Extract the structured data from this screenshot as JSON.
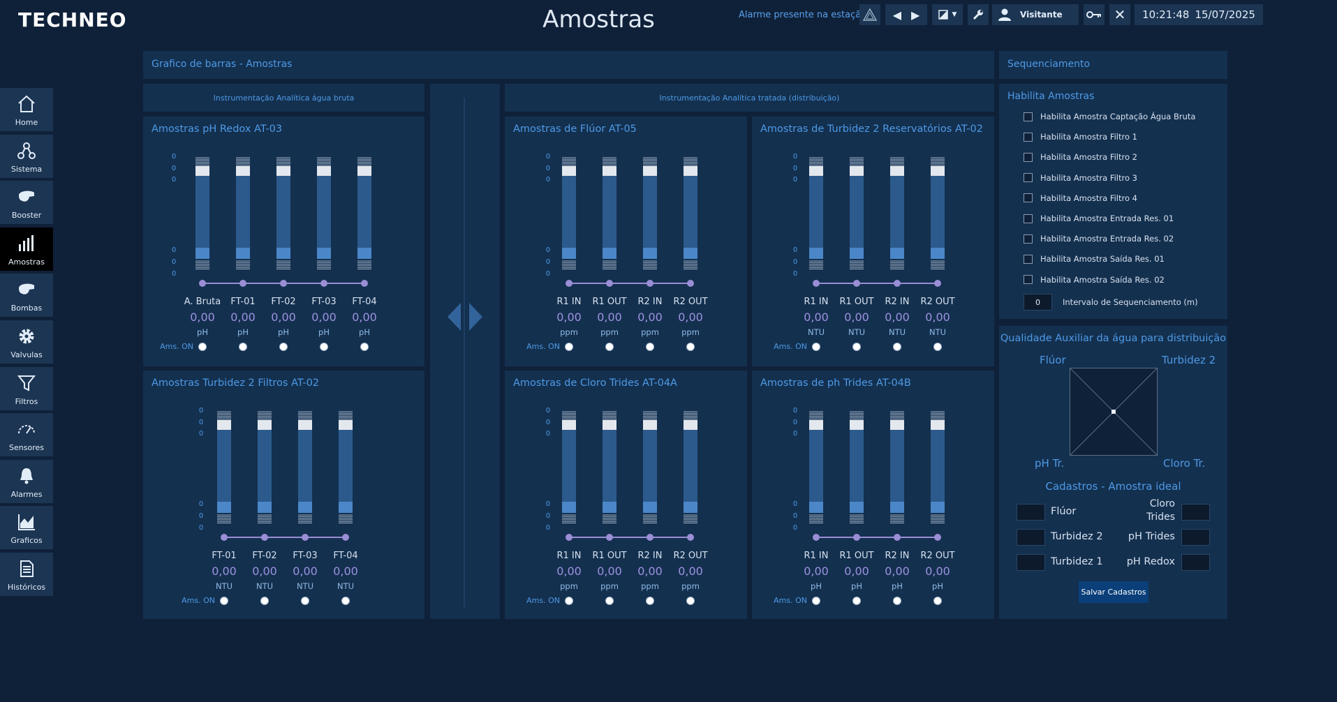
{
  "header": {
    "logo": "TECHNEO",
    "title": "Amostras",
    "alarm_message": "Alarme presente na estação",
    "user": "Visitante",
    "time": "10:21:48",
    "date": "15/07/2025"
  },
  "nav": {
    "items": [
      {
        "label": "Home",
        "icon": "home-icon"
      },
      {
        "label": "Sistema",
        "icon": "network-icon"
      },
      {
        "label": "Booster",
        "icon": "booster-pump-icon"
      },
      {
        "label": "Amostras",
        "icon": "bar-chart-icon",
        "active": true
      },
      {
        "label": "Bombas",
        "icon": "pump-icon"
      },
      {
        "label": "Valvulas",
        "icon": "gear-icon"
      },
      {
        "label": "Filtros",
        "icon": "filter-icon"
      },
      {
        "label": "Sensores",
        "icon": "gauge-icon"
      },
      {
        "label": "Alarmes",
        "icon": "bell-icon"
      },
      {
        "label": "Graficos",
        "icon": "area-chart-icon"
      },
      {
        "label": "Históricos",
        "icon": "document-icon"
      }
    ]
  },
  "bar_panel_title": "Grafico de barras - Amostras",
  "subheaders": {
    "raw": "Instrumentação Analítica água bruta",
    "treated": "Instrumentação Analítica tratada (distribuição)"
  },
  "ams_on_label": "Ams. ON",
  "scale_label": "0",
  "groups": [
    {
      "title": "Amostras pH Redox AT-03",
      "channels": [
        {
          "name": "A. Bruta",
          "value": "0,00",
          "unit": "pH"
        },
        {
          "name": "FT-01",
          "value": "0,00",
          "unit": "pH"
        },
        {
          "name": "FT-02",
          "value": "0,00",
          "unit": "pH"
        },
        {
          "name": "FT-03",
          "value": "0,00",
          "unit": "pH"
        },
        {
          "name": "FT-04",
          "value": "0,00",
          "unit": "pH"
        }
      ]
    },
    {
      "title": "Amostras de Flúor AT-05",
      "channels": [
        {
          "name": "R1 IN",
          "value": "0,00",
          "unit": "ppm"
        },
        {
          "name": "R1 OUT",
          "value": "0,00",
          "unit": "ppm"
        },
        {
          "name": "R2 IN",
          "value": "0,00",
          "unit": "ppm"
        },
        {
          "name": "R2 OUT",
          "value": "0,00",
          "unit": "ppm"
        }
      ]
    },
    {
      "title": "Amostras de Turbidez 2 Reservatórios AT-02",
      "channels": [
        {
          "name": "R1 IN",
          "value": "0,00",
          "unit": "NTU"
        },
        {
          "name": "R1 OUT",
          "value": "0,00",
          "unit": "NTU"
        },
        {
          "name": "R2 IN",
          "value": "0,00",
          "unit": "NTU"
        },
        {
          "name": "R2 OUT",
          "value": "0,00",
          "unit": "NTU"
        }
      ]
    },
    {
      "title": "Amostras Turbidez 2 Filtros AT-02",
      "channels": [
        {
          "name": "FT-01",
          "value": "0,00",
          "unit": "NTU"
        },
        {
          "name": "FT-02",
          "value": "0,00",
          "unit": "NTU"
        },
        {
          "name": "FT-03",
          "value": "0,00",
          "unit": "NTU"
        },
        {
          "name": "FT-04",
          "value": "0,00",
          "unit": "NTU"
        }
      ]
    },
    {
      "title": "Amostras de Cloro Trides AT-04A",
      "channels": [
        {
          "name": "R1 IN",
          "value": "0,00",
          "unit": "ppm"
        },
        {
          "name": "R1 OUT",
          "value": "0,00",
          "unit": "ppm"
        },
        {
          "name": "R2 IN",
          "value": "0,00",
          "unit": "ppm"
        },
        {
          "name": "R2 OUT",
          "value": "0,00",
          "unit": "ppm"
        }
      ]
    },
    {
      "title": "Amostras de ph Trides AT-04B",
      "channels": [
        {
          "name": "R1 IN",
          "value": "0,00",
          "unit": "pH"
        },
        {
          "name": "R1 OUT",
          "value": "0,00",
          "unit": "pH"
        },
        {
          "name": "R2 IN",
          "value": "0,00",
          "unit": "pH"
        },
        {
          "name": "R2 OUT",
          "value": "0,00",
          "unit": "pH"
        }
      ]
    }
  ],
  "sequencing": {
    "title": "Sequenciamento",
    "enable_title": "Habilita Amostras",
    "options": [
      "Habilita Amostra Captação Água Bruta",
      "Habilita Amostra Filtro 1",
      "Habilita Amostra Filtro 2",
      "Habilita Amostra Filtro 3",
      "Habilita Amostra Filtro 4",
      "Habilita Amostra Entrada Res. 01",
      "Habilita Amostra Entrada Res. 02",
      "Habilita Amostra Saída Res. 01",
      "Habilita Amostra Saída Res. 02"
    ],
    "interval_value": "0",
    "interval_label": "Intervalo de Sequenciamento (m)"
  },
  "quality": {
    "title": "Qualidade Auxiliar da água para distribuição",
    "corners": {
      "tl": "Flúor",
      "tr": "Turbidez 2",
      "bl": "pH Tr.",
      "br": "Cloro Tr."
    },
    "register_title": "Cadastros - Amostra ideal",
    "fields": {
      "fluor": "Flúor",
      "cloro": "Cloro Trides",
      "turbidez2": "Turbidez 2",
      "ph_trides": "pH Trides",
      "turbidez1": "Turbidez 1",
      "ph_redox": "pH Redox"
    },
    "save_label": "Salvar Cadastros"
  }
}
